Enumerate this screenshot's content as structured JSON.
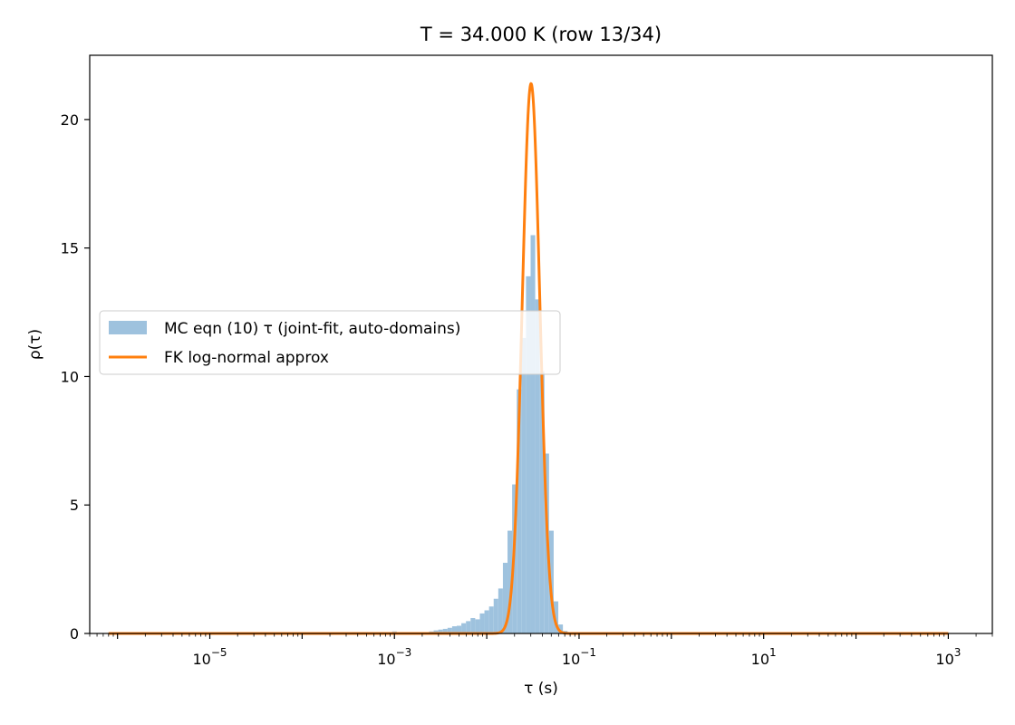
{
  "chart_data": {
    "type": "bar",
    "title": "T = 34.000 K  (row 13/34)",
    "xlabel": "τ (s)",
    "ylabel": "ρ(τ)",
    "xscale": "log",
    "xlim": [
      5e-07,
      3000
    ],
    "ylim": [
      0,
      22.5
    ],
    "grid": false,
    "legend_position": "center-left",
    "x_ticks": [
      {
        "value": 1e-05,
        "base": "10",
        "exp": "−5"
      },
      {
        "value": 0.001,
        "base": "10",
        "exp": "−3"
      },
      {
        "value": 0.1,
        "base": "10",
        "exp": "−1"
      },
      {
        "value": 10,
        "base": "10",
        "exp": "1"
      },
      {
        "value": 1000,
        "base": "10",
        "exp": "3"
      }
    ],
    "y_ticks": [
      {
        "value": 0,
        "label": "0"
      },
      {
        "value": 5,
        "label": "5"
      },
      {
        "value": 10,
        "label": "10"
      },
      {
        "value": 15,
        "label": "15"
      },
      {
        "value": 20,
        "label": "20"
      }
    ],
    "series": [
      {
        "name": "MC eqn (10) τ (joint-fit, auto-domains)",
        "kind": "histogram",
        "color": "#9ec2de",
        "log10_bin_width": 0.05,
        "bins": [
          {
            "log10_tau": -3.0,
            "density": 0.08
          },
          {
            "log10_tau": -2.6,
            "density": 0.08
          },
          {
            "log10_tau": -2.55,
            "density": 0.12
          },
          {
            "log10_tau": -2.5,
            "density": 0.15
          },
          {
            "log10_tau": -2.45,
            "density": 0.18
          },
          {
            "log10_tau": -2.4,
            "density": 0.22
          },
          {
            "log10_tau": -2.35,
            "density": 0.28
          },
          {
            "log10_tau": -2.3,
            "density": 0.3
          },
          {
            "log10_tau": -2.25,
            "density": 0.4
          },
          {
            "log10_tau": -2.2,
            "density": 0.48
          },
          {
            "log10_tau": -2.15,
            "density": 0.6
          },
          {
            "log10_tau": -2.1,
            "density": 0.55
          },
          {
            "log10_tau": -2.05,
            "density": 0.78
          },
          {
            "log10_tau": -2.0,
            "density": 0.9
          },
          {
            "log10_tau": -1.95,
            "density": 1.05
          },
          {
            "log10_tau": -1.9,
            "density": 1.35
          },
          {
            "log10_tau": -1.85,
            "density": 1.75
          },
          {
            "log10_tau": -1.8,
            "density": 2.75
          },
          {
            "log10_tau": -1.75,
            "density": 4.0
          },
          {
            "log10_tau": -1.7,
            "density": 5.8
          },
          {
            "log10_tau": -1.65,
            "density": 9.5
          },
          {
            "log10_tau": -1.6,
            "density": 11.5
          },
          {
            "log10_tau": -1.55,
            "density": 13.9
          },
          {
            "log10_tau": -1.5,
            "density": 15.5
          },
          {
            "log10_tau": -1.45,
            "density": 13.0
          },
          {
            "log10_tau": -1.4,
            "density": 10.2
          },
          {
            "log10_tau": -1.35,
            "density": 7.0
          },
          {
            "log10_tau": -1.3,
            "density": 4.0
          },
          {
            "log10_tau": -1.25,
            "density": 1.25
          },
          {
            "log10_tau": -1.2,
            "density": 0.35
          },
          {
            "log10_tau": -1.15,
            "density": 0.1
          }
        ]
      },
      {
        "name": "FK log-normal approx",
        "kind": "line",
        "color": "#ff7f0e",
        "peak_log10_tau": -1.52,
        "peak_density": 21.4,
        "sigma_log10": 0.095,
        "x_range": [
          8e-07,
          1000
        ]
      }
    ]
  }
}
